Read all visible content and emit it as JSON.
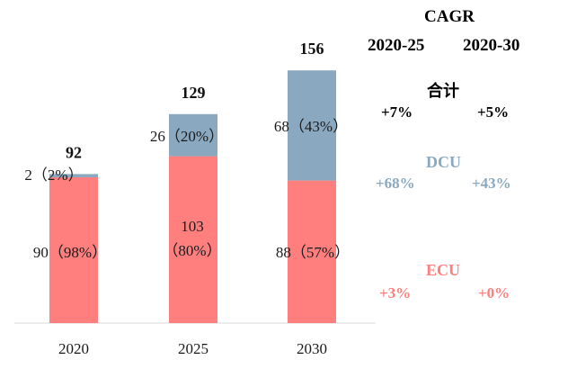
{
  "chart_data": {
    "type": "bar",
    "stacked": true,
    "categories": [
      "2020",
      "2025",
      "2030"
    ],
    "series": [
      {
        "name": "ECU",
        "color": "#FF7F7F",
        "values": [
          90,
          103,
          88
        ],
        "labels": [
          "90（98%）",
          "103（80%）",
          "88（57%）"
        ]
      },
      {
        "name": "DCU",
        "color": "#8AA9C1",
        "values": [
          2,
          26,
          68
        ],
        "labels": [
          "2（2%）",
          "26（20%）",
          "68（43%）"
        ]
      }
    ],
    "totals": [
      "92",
      "129",
      "156"
    ],
    "ylim": [
      0,
      160
    ],
    "xlabel": "",
    "ylabel": "",
    "legend": "none"
  },
  "cagr": {
    "title": "CAGR",
    "periods": [
      "2020-25",
      "2020-30"
    ],
    "rows": [
      {
        "name": "合计",
        "color": "#000000",
        "values": [
          "+7%",
          "+5%"
        ]
      },
      {
        "name": "DCU",
        "color": "#8AA9C1",
        "values": [
          "+68%",
          "+43%"
        ]
      },
      {
        "name": "ECU",
        "color": "#FF7F7F",
        "values": [
          "+3%",
          "+0%"
        ]
      }
    ]
  }
}
